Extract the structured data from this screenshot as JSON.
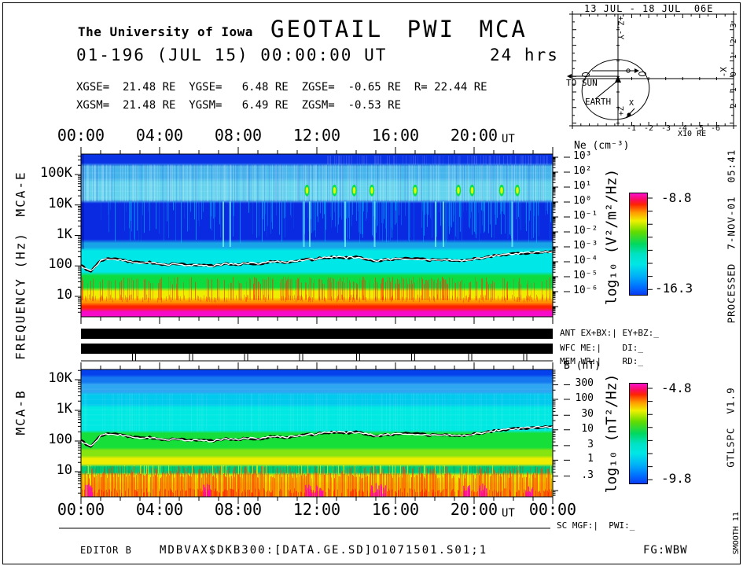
{
  "header": {
    "org": "The University of Iowa",
    "title": "GEOTAIL PWI MCA",
    "date_line": "01-196 (JUL 15) 00:00:00 UT",
    "duration": "24 hrs",
    "coords_line1": "XGSE=  21.48 RE  YGSE=   6.48 RE  ZGSE=  -0.65 RE  R= 22.44 RE",
    "coords_line2": "XGSM=  21.48 RE  YGSM=   6.49 RE  ZGSM=  -0.53 RE"
  },
  "orbit_inset": {
    "title": "13 JUL - 18 JUL  06E",
    "to_sun": "TO SUN",
    "earth": "EARTH",
    "axis_top": "+Z,-Y",
    "axis_right": "-X",
    "axis_bottom": "+Z",
    "axis_x": "X",
    "x_unit": "X10 RE",
    "x_ticks": [
      "-1",
      "-2",
      "-3",
      "-4",
      "-5",
      "-6"
    ],
    "y_ticks": [
      "-3",
      "-2",
      "-1",
      "0",
      "1",
      "2"
    ]
  },
  "axes": {
    "time_labels": [
      "00:00",
      "04:00",
      "08:00",
      "12:00",
      "16:00",
      "20:00"
    ],
    "time_end_label": "00:00",
    "ut": "UT",
    "freq_axis": "FREQUENCY (Hz)",
    "panel_e": "MCA-E",
    "panel_b": "MCA-B"
  },
  "status": {
    "rows": [
      "ANT EX+BX:| EY+BZ:_",
      "WFC ME:|    DI:_",
      "MEM WR:|    RD:_"
    ],
    "mem_marks_hours": [
      2.7,
      5.6,
      8.4,
      11.2,
      14.1,
      16.9,
      19.8,
      22.6
    ],
    "sc": "SC MGF:|  PWI:_"
  },
  "footer": {
    "editor": "EDITOR B",
    "file": "MDBVAX$DKB300:[DATA.GE.SD]O1071501.S01;1",
    "fg": "FG:WBW"
  },
  "sidebar_right": {
    "processed": "PROCESSED  7-NOV-01  05:41",
    "version": "GTLSPC  V1.9",
    "smooth": "SMOOTH 11"
  },
  "colors": {
    "ink": "#000000",
    "paper": "#ffffff",
    "trace": "#ffffff",
    "spike_red": "#ff2d00",
    "spike_magenta": "#ff00bb"
  },
  "colorbar_gradient": [
    {
      "at": 0.0,
      "c": "#fb10cd"
    },
    {
      "at": 0.06,
      "c": "#fb0a62"
    },
    {
      "at": 0.11,
      "c": "#fd2400"
    },
    {
      "at": 0.19,
      "c": "#ff9c00"
    },
    {
      "at": 0.27,
      "c": "#f0f000"
    },
    {
      "at": 0.38,
      "c": "#63dc00"
    },
    {
      "at": 0.5,
      "c": "#00d860"
    },
    {
      "at": 0.6,
      "c": "#00e2c4"
    },
    {
      "at": 0.7,
      "c": "#00e6e6"
    },
    {
      "at": 0.82,
      "c": "#00aef8"
    },
    {
      "at": 0.92,
      "c": "#0070ff"
    },
    {
      "at": 1.0,
      "c": "#0a3cf4"
    }
  ],
  "chart_data": [
    {
      "type": "heatmap",
      "name": "MCA-E",
      "title": "GEOTAIL PWI MCA-E electric field spectrogram, 24 hrs on 2001-196 (JUL 15)",
      "x": {
        "label": "UT",
        "range_hours": [
          0,
          24
        ],
        "tick_labels": [
          "00:00",
          "04:00",
          "08:00",
          "12:00",
          "16:00",
          "20:00",
          "00:00"
        ]
      },
      "y": {
        "label": "FREQUENCY (Hz)",
        "scale": "log",
        "range_hz": [
          2.1,
          470000
        ],
        "ticks": [
          {
            "label": "100K",
            "hz": 100000
          },
          {
            "label": "10K",
            "hz": 10000
          },
          {
            "label": "1K",
            "hz": 1000
          },
          {
            "label": "100",
            "hz": 100
          },
          {
            "label": "10",
            "hz": 10
          }
        ]
      },
      "colorbar": {
        "label": "log₁₀ (V²/m²/Hz)",
        "max_label": "-8.8",
        "min_label": "-16.3",
        "max": -8.8,
        "min": -16.3
      },
      "ne_axis": {
        "title": "Ne (cm⁻³)",
        "ticks": [
          {
            "label": "10³",
            "v": 1000
          },
          {
            "label": "10²",
            "v": 100
          },
          {
            "label": "10¹",
            "v": 10
          },
          {
            "label": "10⁰",
            "v": 1
          },
          {
            "label": "10⁻¹",
            "v": 0.1
          },
          {
            "label": "10⁻²",
            "v": 0.01
          },
          {
            "label": "10⁻³",
            "v": 0.001
          },
          {
            "label": "10⁻⁴",
            "v": 0.0001
          },
          {
            "label": "10⁻⁵",
            "v": 1e-05
          },
          {
            "label": "10⁻⁶",
            "v": 1e-06
          }
        ]
      },
      "bands": [
        {
          "f_hi": 470000,
          "f_lo": 210000,
          "color": "#0a33e6"
        },
        {
          "f_hi": 210000,
          "f_lo": 65000,
          "color": "#46b5ec"
        },
        {
          "f_hi": 65000,
          "f_lo": 13000,
          "color": "#63d3ee"
        },
        {
          "f_hi": 13000,
          "f_lo": 650,
          "color": "#0a2ae2"
        },
        {
          "f_hi": 650,
          "f_lo": 360,
          "color": "#18a2e8"
        },
        {
          "f_hi": 360,
          "f_lo": 55,
          "color": "#00e7e7"
        },
        {
          "f_hi": 55,
          "f_lo": 17,
          "color": "#0cdc40"
        },
        {
          "f_hi": 17,
          "f_lo": 8,
          "color": "#eeee00"
        },
        {
          "f_hi": 8,
          "f_lo": 5.5,
          "color": "#ff9500"
        },
        {
          "f_hi": 5.5,
          "f_lo": 3.6,
          "color": "#ff2200"
        },
        {
          "f_hi": 3.6,
          "f_lo": 2.1,
          "color": "#f70ac8"
        }
      ],
      "bright_spots_hours": [
        11.5,
        12.9,
        13.9,
        14.8,
        17.0,
        19.2,
        19.9,
        21.4,
        22.2
      ],
      "tall_streaks_hours": [
        7.2,
        7.55,
        11.3,
        11.6,
        13.4,
        14.9,
        18.0,
        18.4,
        21.9
      ],
      "trace": {
        "name": "electron density / plasma frequency line",
        "hours_step": 0.5,
        "hz": [
          100,
          66,
          150,
          175,
          160,
          140,
          125,
          130,
          118,
          112,
          112,
          105,
          112,
          100,
          106,
          118,
          112,
          125,
          118,
          132,
          140,
          132,
          150,
          158,
          170,
          190,
          200,
          185,
          195,
          172,
          148,
          160,
          168,
          175,
          168,
          160,
          155,
          160,
          155,
          148,
          168,
          190,
          215,
          235,
          255,
          265,
          275,
          285,
          295
        ]
      }
    },
    {
      "type": "heatmap",
      "name": "MCA-B",
      "title": "GEOTAIL PWI MCA-B magnetic field spectrogram, 24 hrs on 2001-196 (JUL 15)",
      "x": {
        "label": "UT",
        "range_hours": [
          0,
          24
        ],
        "tick_labels": [
          "00:00",
          "04:00",
          "08:00",
          "12:00",
          "16:00",
          "20:00",
          "00:00"
        ]
      },
      "y": {
        "label": "FREQUENCY (Hz)",
        "scale": "log",
        "range_hz": [
          1.5,
          21500
        ],
        "ticks": [
          {
            "label": "10K",
            "hz": 10000
          },
          {
            "label": "1K",
            "hz": 1000
          },
          {
            "label": "100",
            "hz": 100
          },
          {
            "label": "10",
            "hz": 10
          }
        ]
      },
      "colorbar": {
        "label": "log₁₀ (nT²/Hz)",
        "max_label": "-4.8",
        "min_label": "-9.8",
        "max": -4.8,
        "min": -9.8
      },
      "b_axis": {
        "title": "B (nT)",
        "ticks": [
          {
            "label": "300",
            "v": 300
          },
          {
            "label": "100",
            "v": 100
          },
          {
            "label": "30",
            "v": 30
          },
          {
            "label": "10",
            "v": 10
          },
          {
            "label": "3",
            "v": 3
          },
          {
            "label": "1",
            "v": 1
          },
          {
            "label": ".3",
            "v": 0.3
          }
        ]
      },
      "bands": [
        {
          "f_hi": 21500,
          "f_lo": 13000,
          "color": "#0542ee"
        },
        {
          "f_hi": 13000,
          "f_lo": 7500,
          "color": "#1678f0"
        },
        {
          "f_hi": 7500,
          "f_lo": 3600,
          "color": "#2fa6f2"
        },
        {
          "f_hi": 3600,
          "f_lo": 1400,
          "color": "#00c9ee"
        },
        {
          "f_hi": 1400,
          "f_lo": 200,
          "color": "#00e8e2"
        },
        {
          "f_hi": 200,
          "f_lo": 55,
          "color": "#16df3a"
        },
        {
          "f_hi": 55,
          "f_lo": 30,
          "color": "#86e410"
        },
        {
          "f_hi": 30,
          "f_lo": 16,
          "color": "#eeee00"
        },
        {
          "f_hi": 16,
          "f_lo": 8.5,
          "color": "#00cc77"
        },
        {
          "f_hi": 8.5,
          "f_lo": 4.5,
          "color": "#e6e600"
        },
        {
          "f_hi": 4.5,
          "f_lo": 1.5,
          "color": "#f0d200"
        }
      ],
      "magenta_clusters_hours": [
        0.4,
        6.4,
        11.6,
        12.1,
        14.9,
        15.3,
        19.6,
        20.4,
        22.8
      ],
      "trace": {
        "name": "electron density / plasma frequency line",
        "hours_step": 0.5,
        "hz": [
          100,
          66,
          150,
          175,
          160,
          140,
          125,
          130,
          118,
          112,
          112,
          105,
          112,
          100,
          106,
          118,
          112,
          125,
          118,
          132,
          140,
          132,
          150,
          158,
          170,
          190,
          200,
          185,
          195,
          172,
          148,
          160,
          168,
          175,
          168,
          160,
          155,
          160,
          155,
          148,
          168,
          190,
          215,
          235,
          255,
          265,
          275,
          285,
          295
        ]
      }
    }
  ]
}
